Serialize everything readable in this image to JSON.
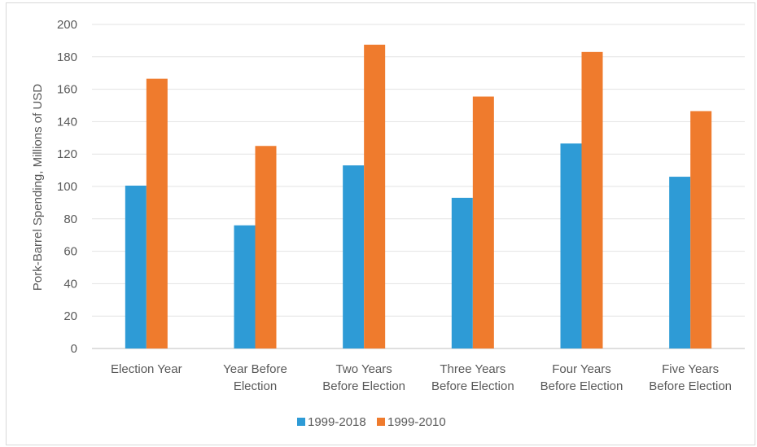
{
  "chart_data": {
    "type": "bar",
    "title": "",
    "xlabel": "",
    "ylabel": "Pork-Barrel Spending, Millions of USD",
    "ylim": [
      0,
      200
    ],
    "yticks": [
      0,
      20,
      40,
      60,
      80,
      100,
      120,
      140,
      160,
      180,
      200
    ],
    "grid": true,
    "legend_position": "bottom",
    "categories": [
      [
        "Election Year"
      ],
      [
        "Year Before",
        "Election"
      ],
      [
        "Two Years",
        "Before Election"
      ],
      [
        "Three Years",
        "Before Election"
      ],
      [
        "Four Years",
        "Before Election"
      ],
      [
        "Five Years",
        "Before Election"
      ]
    ],
    "series": [
      {
        "name": "1999-2018",
        "color": "#2e9bd6",
        "values": [
          100.5,
          76,
          113,
          93,
          126.5,
          106
        ]
      },
      {
        "name": "1999-2010",
        "color": "#ef7b2d",
        "values": [
          166.5,
          125,
          187.5,
          155.5,
          183,
          146.5
        ]
      }
    ]
  }
}
